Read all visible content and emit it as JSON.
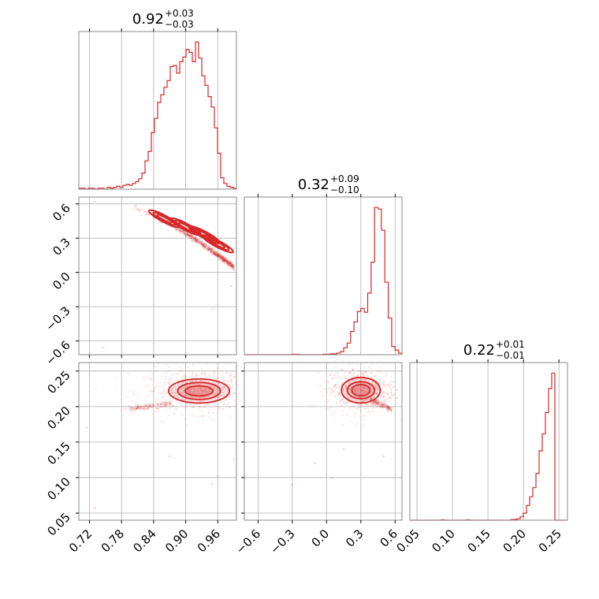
{
  "chart_data": {
    "type": "corner",
    "color": "#d62728",
    "parameters": [
      {
        "median": "0.92",
        "plus": "+0.03",
        "minus": "−0.03",
        "range": [
          0.7,
          0.995
        ],
        "ticks": [
          0.72,
          0.78,
          0.84,
          0.9,
          0.96
        ],
        "tick_labels": [
          "0.72",
          "0.78",
          "0.84",
          "0.90",
          "0.96"
        ],
        "hist_bins": [
          0.7,
          0.995,
          50
        ],
        "hist_counts": [
          1,
          1,
          0,
          1,
          1,
          0,
          1,
          1,
          0,
          2,
          1,
          2,
          3,
          2,
          4,
          5,
          4,
          6,
          8,
          11,
          17,
          30,
          40,
          60,
          75,
          92,
          100,
          108,
          115,
          130,
          131,
          123,
          135,
          140,
          148,
          145,
          135,
          156,
          139,
          120,
          110,
          98,
          87,
          65,
          38,
          12,
          6,
          3,
          2,
          1
        ]
      },
      {
        "median": "0.32",
        "plus": "+0.09",
        "minus": "−0.10",
        "range": [
          -0.72,
          0.66
        ],
        "ticks": [
          -0.6,
          -0.3,
          0.0,
          0.3,
          0.6
        ],
        "tick_labels": [
          "−0.6",
          "−0.3",
          "0.0",
          "0.3",
          "0.6"
        ],
        "hist_bins": [
          -0.72,
          0.66,
          46
        ],
        "hist_counts": [
          0,
          0,
          0,
          0,
          0,
          0,
          0,
          0,
          0,
          0,
          0,
          0,
          0,
          0,
          1,
          1,
          0,
          0,
          0,
          0,
          0,
          0,
          0,
          1,
          1,
          2,
          2,
          4,
          8,
          18,
          30,
          60,
          85,
          112,
          120,
          110,
          160,
          240,
          382,
          378,
          323,
          188,
          95,
          21,
          12,
          4
        ]
      },
      {
        "median": "0.22",
        "plus": "+0.01",
        "minus": "−0.01",
        "range": [
          0.04,
          0.262
        ],
        "ticks": [
          0.05,
          0.1,
          0.15,
          0.2,
          0.25
        ],
        "tick_labels": [
          "0.05",
          "0.10",
          "0.15",
          "0.20",
          "0.25"
        ],
        "hist_bins": [
          0.04,
          0.262,
          50
        ],
        "hist_counts": [
          0,
          0,
          0,
          0,
          0,
          0,
          0,
          0,
          0,
          0,
          1,
          0,
          0,
          0,
          0,
          0,
          0,
          0,
          1,
          0,
          0,
          0,
          0,
          0,
          0,
          0,
          0,
          0,
          0,
          0,
          0,
          0,
          2,
          3,
          5,
          12,
          25,
          52,
          83,
          115,
          165,
          245,
          305,
          380,
          465,
          520,
          0,
          0,
          0,
          0
        ]
      }
    ],
    "pairs": [
      {
        "x": 0,
        "y": 1,
        "ridge": {
          "x0": 0.79,
          "y0": 0.6,
          "x1": 0.99,
          "y1": 0.05,
          "curvature": 0.6
        },
        "mode": [
          0.925,
          0.31
        ],
        "level_sizes": [
          [
            0.05,
            0.2
          ],
          [
            0.035,
            0.12
          ],
          [
            0.02,
            0.07
          ]
        ],
        "outliers": [
          [
            0.73,
            0.62
          ],
          [
            0.745,
            -0.66
          ],
          [
            0.95,
            -0.32
          ],
          [
            0.985,
            -0.12
          ],
          [
            0.99,
            0.02
          ]
        ]
      },
      {
        "x": 0,
        "y": 2,
        "mode": [
          0.925,
          0.222
        ],
        "level_sizes": [
          [
            0.057,
            0.017
          ],
          [
            0.04,
            0.012
          ],
          [
            0.026,
            0.007
          ]
        ],
        "tail": {
          "from": [
            0.79,
            0.196
          ],
          "to": [
            0.87,
            0.204
          ]
        },
        "outliers": [
          [
            0.73,
            0.057
          ],
          [
            0.87,
            0.13
          ],
          [
            0.95,
            0.09
          ],
          [
            0.96,
            0.102
          ],
          [
            0.715,
            0.17
          ],
          [
            0.99,
            0.126
          ]
        ]
      },
      {
        "x": 1,
        "y": 2,
        "mode": [
          0.3,
          0.223
        ],
        "level_sizes": [
          [
            0.17,
            0.018
          ],
          [
            0.12,
            0.012
          ],
          [
            0.08,
            0.008
          ]
        ],
        "tail": {
          "from": [
            0.38,
            0.21
          ],
          "to": [
            0.57,
            0.196
          ]
        },
        "outliers": [
          [
            -0.3,
            0.09
          ],
          [
            -0.1,
            0.12
          ],
          [
            0.05,
            0.1
          ],
          [
            0.5,
            0.13
          ],
          [
            0.15,
            0.14
          ]
        ]
      }
    ]
  }
}
